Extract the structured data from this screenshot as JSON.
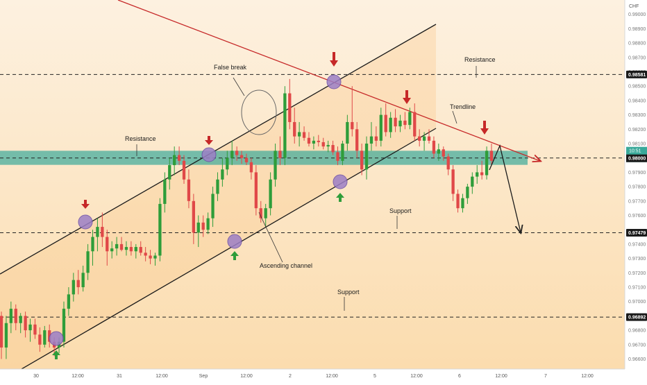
{
  "chart_data": {
    "type": "candlestick",
    "currency": "CHF",
    "y_ticks": [
      "0.99000",
      "0.98900",
      "0.98800",
      "0.98700",
      "0.98600",
      "0.98500",
      "0.98400",
      "0.98300",
      "0.98200",
      "0.98100",
      "0.97900",
      "0.97800",
      "0.97700",
      "0.97600",
      "0.97400",
      "0.97300",
      "0.97200",
      "0.97100",
      "0.97000",
      "0.96900",
      "0.96800",
      "0.96700",
      "0.96600"
    ],
    "ylim": [
      0.9653,
      0.991
    ],
    "x_ticks": [
      "30",
      "12:00",
      "31",
      "12:00",
      "Sep",
      "12:00",
      "2",
      "12:00",
      "5",
      "12:00",
      "6",
      "12:00",
      "7",
      "12:00"
    ],
    "levels": {
      "resistance_top": {
        "value": 0.98581,
        "label": "0.98581"
      },
      "current": {
        "value": 0.98,
        "label": "0.98000",
        "countdown": "10:51"
      },
      "support_mid": {
        "value": 0.97479,
        "label": "0.97479"
      },
      "support_low": {
        "value": 0.96892,
        "label": "0.96892"
      }
    },
    "resistance_zone": [
      0.97952,
      0.9805
    ],
    "annotations": {
      "false_break": "False break",
      "resistance_top": "Resistance",
      "resistance_zone": "Resistance",
      "trendline": "Trendline",
      "support_mid": "Support",
      "support_low": "Support",
      "channel": "Ascending channel"
    },
    "candles": [
      [
        0.969,
        0.9693,
        0.966,
        0.9668
      ],
      [
        0.9668,
        0.969,
        0.966,
        0.9685
      ],
      [
        0.9685,
        0.97,
        0.9678,
        0.9695
      ],
      [
        0.9695,
        0.9698,
        0.968,
        0.9685
      ],
      [
        0.9685,
        0.9692,
        0.9678,
        0.969
      ],
      [
        0.969,
        0.9693,
        0.9675,
        0.968
      ],
      [
        0.968,
        0.9688,
        0.9672,
        0.9684
      ],
      [
        0.9684,
        0.9688,
        0.9674,
        0.9677
      ],
      [
        0.9677,
        0.9682,
        0.9665,
        0.967
      ],
      [
        0.967,
        0.9683,
        0.9668,
        0.968
      ],
      [
        0.968,
        0.9684,
        0.9668,
        0.9672
      ],
      [
        0.9672,
        0.9675,
        0.9662,
        0.9668
      ],
      [
        0.9668,
        0.9675,
        0.9664,
        0.9672
      ],
      [
        0.9672,
        0.97,
        0.9668,
        0.9695
      ],
      [
        0.9695,
        0.971,
        0.969,
        0.9705
      ],
      [
        0.9705,
        0.972,
        0.97,
        0.9715
      ],
      [
        0.9715,
        0.9722,
        0.9705,
        0.971
      ],
      [
        0.971,
        0.9725,
        0.9707,
        0.972
      ],
      [
        0.972,
        0.974,
        0.9715,
        0.9735
      ],
      [
        0.9735,
        0.975,
        0.9725,
        0.9745
      ],
      [
        0.9745,
        0.9758,
        0.9735,
        0.9752
      ],
      [
        0.9752,
        0.9762,
        0.9738,
        0.9745
      ],
      [
        0.9745,
        0.975,
        0.9725,
        0.9735
      ],
      [
        0.9735,
        0.9742,
        0.973,
        0.9737
      ],
      [
        0.9737,
        0.9745,
        0.9732,
        0.974
      ],
      [
        0.974,
        0.9745,
        0.9735,
        0.9736
      ],
      [
        0.9736,
        0.9742,
        0.9732,
        0.9738
      ],
      [
        0.9738,
        0.9742,
        0.9732,
        0.9735
      ],
      [
        0.9735,
        0.974,
        0.973,
        0.9738
      ],
      [
        0.9738,
        0.9742,
        0.9732,
        0.9734
      ],
      [
        0.9734,
        0.9738,
        0.9728,
        0.9732
      ],
      [
        0.9732,
        0.9736,
        0.9726,
        0.973
      ],
      [
        0.973,
        0.9734,
        0.9725,
        0.9732
      ],
      [
        0.9732,
        0.9772,
        0.9728,
        0.9768
      ],
      [
        0.9768,
        0.979,
        0.9762,
        0.9785
      ],
      [
        0.9785,
        0.98,
        0.9778,
        0.9795
      ],
      [
        0.9795,
        0.9808,
        0.9788,
        0.9802
      ],
      [
        0.9802,
        0.9808,
        0.9795,
        0.9798
      ],
      [
        0.9798,
        0.9802,
        0.9782,
        0.9785
      ],
      [
        0.9785,
        0.9792,
        0.9765,
        0.977
      ],
      [
        0.977,
        0.9775,
        0.974,
        0.9748
      ],
      [
        0.9748,
        0.976,
        0.9738,
        0.9755
      ],
      [
        0.9755,
        0.976,
        0.9745,
        0.975
      ],
      [
        0.975,
        0.9762,
        0.9747,
        0.9758
      ],
      [
        0.9758,
        0.978,
        0.9752,
        0.9775
      ],
      [
        0.9775,
        0.979,
        0.977,
        0.9785
      ],
      [
        0.9785,
        0.98,
        0.978,
        0.9792
      ],
      [
        0.9792,
        0.9805,
        0.9788,
        0.98
      ],
      [
        0.98,
        0.9812,
        0.9795,
        0.9805
      ],
      [
        0.9805,
        0.9808,
        0.9798,
        0.9802
      ],
      [
        0.9802,
        0.9805,
        0.9796,
        0.98
      ],
      [
        0.98,
        0.9803,
        0.9795,
        0.9797
      ],
      [
        0.9797,
        0.98,
        0.9785,
        0.979
      ],
      [
        0.979,
        0.9795,
        0.976,
        0.9765
      ],
      [
        0.9765,
        0.977,
        0.9755,
        0.9758
      ],
      [
        0.9758,
        0.9768,
        0.9752,
        0.9765
      ],
      [
        0.9765,
        0.979,
        0.976,
        0.9785
      ],
      [
        0.9785,
        0.981,
        0.978,
        0.9805
      ],
      [
        0.9805,
        0.9815,
        0.9795,
        0.98
      ],
      [
        0.98,
        0.985,
        0.9795,
        0.9845
      ],
      [
        0.9845,
        0.9855,
        0.982,
        0.9825
      ],
      [
        0.9825,
        0.9835,
        0.981,
        0.9815
      ],
      [
        0.9815,
        0.9825,
        0.9808,
        0.9818
      ],
      [
        0.9818,
        0.9822,
        0.9812,
        0.9814
      ],
      [
        0.9814,
        0.9818,
        0.9808,
        0.981
      ],
      [
        0.981,
        0.9815,
        0.9806,
        0.9812
      ],
      [
        0.9812,
        0.9816,
        0.9808,
        0.9811
      ],
      [
        0.9811,
        0.9814,
        0.9806,
        0.9808
      ],
      [
        0.9808,
        0.9812,
        0.9804,
        0.9809
      ],
      [
        0.9809,
        0.9812,
        0.9802,
        0.9804
      ],
      [
        0.9804,
        0.9808,
        0.9795,
        0.9798
      ],
      [
        0.9798,
        0.9812,
        0.9795,
        0.981
      ],
      [
        0.981,
        0.983,
        0.9805,
        0.9825
      ],
      [
        0.9825,
        0.985,
        0.9815,
        0.982
      ],
      [
        0.982,
        0.9825,
        0.98,
        0.9805
      ],
      [
        0.9805,
        0.981,
        0.9788,
        0.9792
      ],
      [
        0.9792,
        0.9815,
        0.9785,
        0.981
      ],
      [
        0.981,
        0.9825,
        0.9805,
        0.9815
      ],
      [
        0.9815,
        0.9822,
        0.9808,
        0.9812
      ],
      [
        0.9812,
        0.9835,
        0.9808,
        0.983
      ],
      [
        0.983,
        0.9838,
        0.9815,
        0.9818
      ],
      [
        0.9818,
        0.9832,
        0.9814,
        0.9828
      ],
      [
        0.9828,
        0.9834,
        0.9818,
        0.9822
      ],
      [
        0.9822,
        0.983,
        0.9818,
        0.9826
      ],
      [
        0.9826,
        0.9832,
        0.982,
        0.9823
      ],
      [
        0.9823,
        0.9835,
        0.982,
        0.9832
      ],
      [
        0.9832,
        0.9838,
        0.9812,
        0.9815
      ],
      [
        0.9815,
        0.982,
        0.9808,
        0.9812
      ],
      [
        0.9812,
        0.9818,
        0.9805,
        0.9815
      ],
      [
        0.9815,
        0.982,
        0.981,
        0.9812
      ],
      [
        0.9812,
        0.9815,
        0.98,
        0.9803
      ],
      [
        0.9803,
        0.981,
        0.9798,
        0.9806
      ],
      [
        0.9806,
        0.9808,
        0.9798,
        0.9801
      ],
      [
        0.9801,
        0.9803,
        0.9788,
        0.9792
      ],
      [
        0.9792,
        0.9795,
        0.977,
        0.9775
      ],
      [
        0.9775,
        0.9778,
        0.9762,
        0.9765
      ],
      [
        0.9765,
        0.9775,
        0.9762,
        0.9772
      ],
      [
        0.9772,
        0.9782,
        0.9768,
        0.978
      ],
      [
        0.978,
        0.979,
        0.9775,
        0.9787
      ],
      [
        0.9787,
        0.9795,
        0.9782,
        0.979
      ],
      [
        0.979,
        0.9798,
        0.9785,
        0.9788
      ],
      [
        0.9788,
        0.9808,
        0.9785,
        0.9805
      ],
      [
        0.9805,
        0.981,
        0.9795,
        0.9798
      ]
    ]
  }
}
